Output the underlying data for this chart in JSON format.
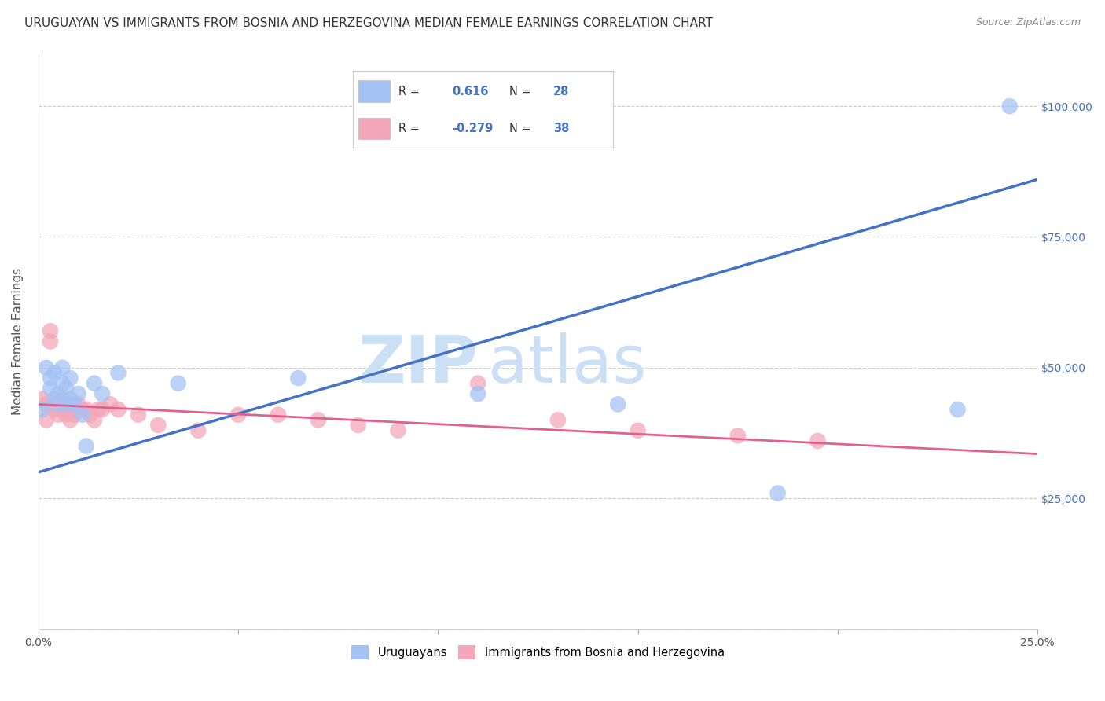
{
  "title": "URUGUAYAN VS IMMIGRANTS FROM BOSNIA AND HERZEGOVINA MEDIAN FEMALE EARNINGS CORRELATION CHART",
  "source": "Source: ZipAtlas.com",
  "ylabel": "Median Female Earnings",
  "xlim": [
    0,
    0.25
  ],
  "ylim": [
    0,
    110000
  ],
  "yticks": [
    0,
    25000,
    50000,
    75000,
    100000
  ],
  "ytick_labels": [
    "",
    "$25,000",
    "$50,000",
    "$75,000",
    "$100,000"
  ],
  "xticks": [
    0.0,
    0.05,
    0.1,
    0.15,
    0.2,
    0.25
  ],
  "xtick_labels": [
    "0.0%",
    "",
    "",
    "",
    "",
    "25.0%"
  ],
  "blue_R": "0.616",
  "blue_N": "28",
  "pink_R": "-0.279",
  "pink_N": "38",
  "blue_color": "#a4c2f4",
  "pink_color": "#f4a7b9",
  "blue_line_color": "#4472c4",
  "pink_line_color": "#e06090",
  "watermark_zip": "ZIP",
  "watermark_atlas": "atlas",
  "watermark_color": "#cce0f5",
  "legend_label_blue": "Uruguayans",
  "legend_label_pink": "Immigrants from Bosnia and Herzegovina",
  "blue_scatter_x": [
    0.001,
    0.002,
    0.003,
    0.003,
    0.004,
    0.004,
    0.005,
    0.005,
    0.006,
    0.006,
    0.007,
    0.007,
    0.008,
    0.008,
    0.009,
    0.01,
    0.011,
    0.012,
    0.014,
    0.016,
    0.02,
    0.035,
    0.065,
    0.11,
    0.145,
    0.185,
    0.23,
    0.243
  ],
  "blue_scatter_y": [
    42000,
    50000,
    46000,
    48000,
    44000,
    49000,
    43000,
    45000,
    47000,
    50000,
    43000,
    46000,
    48000,
    44000,
    43000,
    45000,
    41000,
    35000,
    47000,
    45000,
    49000,
    47000,
    48000,
    45000,
    43000,
    26000,
    42000,
    100000
  ],
  "pink_scatter_x": [
    0.001,
    0.002,
    0.002,
    0.003,
    0.003,
    0.004,
    0.004,
    0.005,
    0.005,
    0.006,
    0.006,
    0.007,
    0.007,
    0.008,
    0.008,
    0.009,
    0.01,
    0.011,
    0.012,
    0.013,
    0.014,
    0.015,
    0.016,
    0.018,
    0.02,
    0.025,
    0.03,
    0.04,
    0.05,
    0.06,
    0.07,
    0.08,
    0.09,
    0.11,
    0.13,
    0.15,
    0.175,
    0.195
  ],
  "pink_scatter_y": [
    44000,
    40000,
    43000,
    55000,
    57000,
    42000,
    43000,
    41000,
    43000,
    42000,
    44000,
    41000,
    43000,
    40000,
    42000,
    41000,
    43000,
    42000,
    42000,
    41000,
    40000,
    42000,
    42000,
    43000,
    42000,
    41000,
    39000,
    38000,
    41000,
    41000,
    40000,
    39000,
    38000,
    47000,
    40000,
    38000,
    37000,
    36000
  ],
  "blue_line_x0": 0.0,
  "blue_line_y0": 30000,
  "blue_line_x1": 0.25,
  "blue_line_y1": 86000,
  "pink_line_x0": 0.0,
  "pink_line_y0": 43000,
  "pink_line_x1": 0.25,
  "pink_line_y1": 33500,
  "background_color": "#ffffff",
  "grid_color": "#cccccc",
  "title_fontsize": 11,
  "axis_label_fontsize": 11,
  "tick_fontsize": 10,
  "right_tick_color": "#4472c4"
}
